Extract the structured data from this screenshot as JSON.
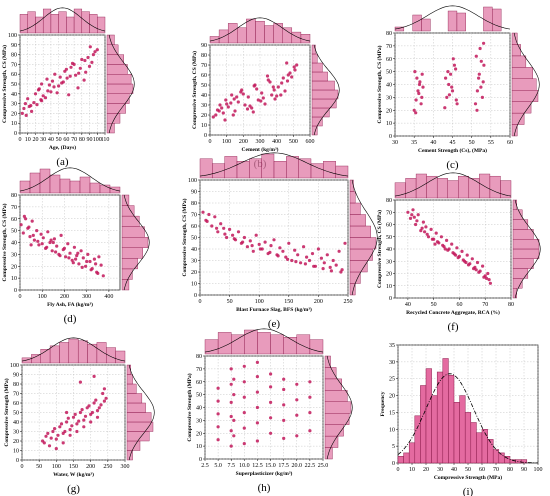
{
  "colors": {
    "point": "#c2185b",
    "bar_fill": "#e07aa6",
    "bar_stroke": "#8b1a4b",
    "hist_fill": "#e46aa0",
    "grid": "#b8b8b8"
  },
  "chart_data": [
    {
      "id": "a",
      "label": "(a)",
      "type": "scatter",
      "xlabel": "Age, (Days)",
      "ylabel": "Compressive Strength, CS (MPa)",
      "xlim": [
        0,
        110
      ],
      "ylim": [
        0,
        100
      ],
      "xticks": [
        0,
        10,
        20,
        30,
        40,
        50,
        60,
        70,
        80,
        90,
        100,
        110
      ],
      "yticks": [
        0,
        10,
        20,
        30,
        40,
        50,
        60,
        70,
        80,
        90,
        100
      ],
      "x": [
        3,
        5,
        7,
        10,
        14,
        20,
        25,
        28,
        28,
        30,
        35,
        40,
        45,
        50,
        56,
        60,
        65,
        70,
        75,
        80,
        85,
        90,
        95,
        100,
        12,
        18,
        24,
        33,
        38,
        42,
        48,
        52,
        58,
        63,
        68,
        72,
        78,
        83,
        88,
        93,
        97,
        15,
        27,
        44,
        61,
        76,
        91,
        8,
        22,
        36,
        54,
        66,
        84
      ],
      "y": [
        20,
        25,
        30,
        35,
        28,
        40,
        45,
        50,
        33,
        38,
        55,
        42,
        60,
        48,
        52,
        65,
        58,
        70,
        46,
        75,
        62,
        68,
        80,
        85,
        27,
        31,
        44,
        36,
        49,
        53,
        41,
        57,
        63,
        39,
        71,
        59,
        66,
        54,
        77,
        72,
        83,
        22,
        34,
        47,
        56,
        61,
        88,
        18,
        29,
        43,
        51,
        67,
        74
      ],
      "top_hist": [
        7,
        8,
        6,
        9,
        7,
        8,
        6,
        9,
        8,
        7,
        6
      ],
      "right_hist": [
        4,
        7,
        10,
        12,
        14,
        13,
        11,
        9,
        6,
        4
      ],
      "top_curve": "bell",
      "right_curve": "bell"
    },
    {
      "id": "b",
      "label": "(b)",
      "type": "scatter",
      "xlabel": "Cement (kg/m³)",
      "ylabel": "Compressive Strength, CS (MPa)",
      "xlim": [
        0,
        600
      ],
      "ylim": [
        0,
        90
      ],
      "xticks": [
        0,
        100,
        200,
        300,
        400,
        500,
        600
      ],
      "yticks": [
        0,
        10,
        20,
        30,
        40,
        50,
        60,
        70,
        80,
        90
      ],
      "x": [
        20,
        45,
        60,
        80,
        95,
        110,
        130,
        150,
        170,
        190,
        210,
        230,
        250,
        270,
        290,
        310,
        330,
        350,
        370,
        390,
        410,
        430,
        450,
        470,
        490,
        510,
        35,
        70,
        125,
        160,
        200,
        240,
        280,
        320,
        360,
        400,
        440,
        480,
        520,
        55,
        100,
        145,
        185,
        225,
        265,
        305,
        345,
        385,
        425,
        465,
        505,
        90,
        140,
        260,
        380,
        460
      ],
      "y": [
        18,
        25,
        30,
        22,
        35,
        28,
        40,
        24,
        33,
        45,
        30,
        38,
        27,
        50,
        35,
        42,
        31,
        55,
        40,
        36,
        48,
        52,
        44,
        60,
        58,
        65,
        20,
        27,
        32,
        38,
        41,
        29,
        46,
        37,
        53,
        39,
        57,
        62,
        70,
        24,
        31,
        36,
        43,
        26,
        49,
        34,
        59,
        45,
        40,
        54,
        68,
        15,
        20,
        23,
        48,
        72
      ],
      "top_hist": [
        3,
        6,
        9,
        7,
        11,
        10,
        8,
        9,
        7,
        5,
        4
      ],
      "right_hist": [
        3,
        6,
        10,
        14,
        15,
        13,
        9,
        6,
        3,
        2
      ],
      "top_curve": "bell",
      "right_curve": "bell"
    },
    {
      "id": "c",
      "label": "(c)",
      "type": "scatter",
      "xlabel": "Cement Strength (Cs), (MPa)",
      "ylabel": "Compressive Strength, CS (MPa)",
      "xlim": [
        30,
        60
      ],
      "ylim": [
        0,
        80
      ],
      "xticks": [
        30,
        35,
        40,
        45,
        50,
        55,
        60
      ],
      "yticks": [
        0,
        10,
        20,
        30,
        40,
        50,
        60,
        70,
        80
      ],
      "x": [
        35,
        35.5,
        36,
        36.5,
        37,
        35.2,
        36.8,
        37.3,
        35.7,
        36.2,
        43,
        43.5,
        44,
        44.5,
        45,
        45.5,
        46,
        43.2,
        44.8,
        45.8,
        51,
        51.5,
        52,
        52.5,
        53,
        51.2,
        52.8,
        53.2,
        51.8,
        52.2,
        35.4,
        36.4,
        44.2,
        45.2,
        51.4,
        52.4,
        37.1,
        46.2,
        53.1,
        43.8
      ],
      "y": [
        20,
        28,
        35,
        42,
        30,
        50,
        25,
        38,
        45,
        33,
        22,
        30,
        40,
        48,
        35,
        55,
        28,
        45,
        38,
        52,
        25,
        35,
        48,
        58,
        42,
        62,
        30,
        55,
        45,
        68,
        18,
        40,
        32,
        60,
        20,
        38,
        48,
        25,
        72,
        50
      ],
      "top_hist": [
        2,
        0,
        8,
        6,
        0,
        0,
        10,
        9,
        0,
        0,
        12,
        11,
        0
      ],
      "right_hist": [
        3,
        7,
        11,
        15,
        14,
        12,
        8,
        5,
        3
      ],
      "top_curve": "bell",
      "right_curve": "bell"
    },
    {
      "id": "d",
      "label": "(d)",
      "type": "scatter",
      "xlabel": "Fly Ash, FA (kg/m³)",
      "ylabel": "Compressive Strength, CS (MPa)",
      "xlim": [
        0,
        450
      ],
      "ylim": [
        0,
        80
      ],
      "xticks": [
        0,
        100,
        200,
        300,
        400
      ],
      "yticks": [
        0,
        10,
        20,
        30,
        40,
        50,
        60,
        70,
        80
      ],
      "x": [
        5,
        15,
        25,
        35,
        45,
        55,
        65,
        75,
        85,
        95,
        105,
        115,
        125,
        135,
        145,
        155,
        165,
        175,
        185,
        195,
        205,
        215,
        225,
        235,
        245,
        255,
        265,
        275,
        285,
        295,
        305,
        315,
        325,
        335,
        345,
        355,
        365,
        375,
        20,
        40,
        60,
        80,
        100,
        120,
        140,
        160,
        180,
        200,
        220,
        240,
        260,
        280,
        300,
        320,
        340,
        50,
        150,
        250,
        350
      ],
      "y": [
        55,
        48,
        60,
        52,
        45,
        58,
        42,
        50,
        38,
        47,
        44,
        35,
        49,
        40,
        33,
        43,
        37,
        30,
        46,
        34,
        28,
        39,
        31,
        25,
        36,
        29,
        22,
        33,
        27,
        20,
        30,
        24,
        18,
        26,
        15,
        28,
        21,
        12,
        62,
        53,
        46,
        41,
        39,
        36,
        42,
        32,
        29,
        35,
        27,
        23,
        31,
        19,
        24,
        17,
        22,
        38,
        40,
        26,
        14
      ],
      "top_hist": [
        6,
        10,
        12,
        9,
        7,
        6,
        8,
        5,
        4,
        3
      ],
      "right_hist": [
        4,
        6,
        9,
        12,
        15,
        13,
        10,
        7,
        4
      ],
      "top_curve": "bell",
      "right_curve": "bell"
    },
    {
      "id": "e",
      "label": "(e)",
      "type": "scatter",
      "xlabel": "Blast Furnace Slag, BFS (kg/m³)",
      "ylabel": "Compressive Strength, CS (MPa)",
      "xlim": [
        0,
        250
      ],
      "ylim": [
        0,
        100
      ],
      "xticks": [
        0,
        50,
        100,
        150,
        200,
        250
      ],
      "yticks": [
        0,
        10,
        20,
        30,
        40,
        50,
        60,
        70,
        80,
        90,
        100
      ],
      "x": [
        5,
        10,
        15,
        20,
        25,
        30,
        35,
        40,
        45,
        50,
        55,
        60,
        65,
        70,
        75,
        80,
        85,
        90,
        95,
        100,
        105,
        110,
        115,
        120,
        125,
        130,
        135,
        140,
        145,
        150,
        155,
        160,
        165,
        170,
        175,
        180,
        185,
        190,
        195,
        200,
        205,
        210,
        215,
        220,
        225,
        230,
        235,
        240,
        245,
        12,
        28,
        42,
        58,
        72,
        88,
        102,
        118,
        132,
        148,
        162,
        178,
        192,
        208,
        222,
        238
      ],
      "y": [
        72,
        65,
        70,
        60,
        68,
        55,
        62,
        58,
        50,
        57,
        52,
        48,
        55,
        45,
        50,
        42,
        47,
        38,
        52,
        44,
        40,
        46,
        36,
        43,
        48,
        35,
        41,
        38,
        33,
        45,
        30,
        39,
        35,
        28,
        42,
        33,
        30,
        36,
        25,
        40,
        32,
        28,
        35,
        24,
        30,
        26,
        38,
        22,
        45,
        64,
        58,
        53,
        49,
        46,
        43,
        40,
        37,
        34,
        31,
        29,
        27,
        25,
        23,
        21,
        20
      ],
      "top_hist": [
        8,
        6,
        9,
        7,
        8,
        10,
        7,
        9,
        8,
        6,
        7,
        5
      ],
      "right_hist": [
        3,
        6,
        10,
        13,
        15,
        12,
        9,
        6,
        3,
        2
      ],
      "top_curve": "bell",
      "right_curve": "bell"
    },
    {
      "id": "f",
      "label": "(f)",
      "type": "scatter",
      "xlabel": "Recycled Concrete Aggregate, RCA (%)",
      "ylabel": "Compressive Strength, CS (MPa)",
      "xlim": [
        35,
        80
      ],
      "ylim": [
        0,
        80
      ],
      "xticks": [
        40,
        50,
        60,
        70,
        80
      ],
      "yticks": [
        0,
        10,
        20,
        30,
        40,
        50,
        60,
        70,
        80
      ],
      "x": [
        40,
        41,
        42,
        43,
        44,
        45,
        46,
        47,
        48,
        49,
        50,
        51,
        52,
        53,
        54,
        55,
        56,
        57,
        58,
        59,
        60,
        61,
        62,
        63,
        64,
        65,
        66,
        67,
        68,
        69,
        70,
        71,
        72,
        41.5,
        43.5,
        45.5,
        47.5,
        49.5,
        51.5,
        53.5,
        55.5,
        57.5,
        59.5,
        61.5,
        63.5,
        65.5,
        67.5,
        69.5,
        71.5,
        42.5,
        46.5,
        50.5,
        54.5,
        58.5,
        62.5,
        66.5,
        70.5
      ],
      "y": [
        70,
        65,
        72,
        60,
        68,
        55,
        62,
        58,
        50,
        56,
        48,
        53,
        45,
        50,
        42,
        47,
        40,
        44,
        36,
        41,
        34,
        38,
        30,
        35,
        28,
        32,
        25,
        29,
        22,
        26,
        18,
        20,
        12,
        68,
        63,
        57,
        52,
        48,
        46,
        43,
        39,
        37,
        33,
        31,
        27,
        24,
        21,
        17,
        15,
        66,
        54,
        44,
        40,
        35,
        29,
        23,
        16
      ],
      "top_hist": [
        7,
        9,
        11,
        10,
        9,
        8,
        10,
        9,
        11,
        10,
        8
      ],
      "right_hist": [
        2,
        5,
        8,
        11,
        14,
        14,
        11,
        8,
        5,
        2
      ],
      "top_curve": "bell",
      "right_curve": "bell"
    },
    {
      "id": "g",
      "label": "(g)",
      "type": "scatter",
      "xlabel": "Water, W (kg/m³)",
      "ylabel": "Compressive Strength (MPa)",
      "xlim": [
        0,
        300
      ],
      "ylim": [
        0,
        100
      ],
      "xticks": [
        0,
        50,
        100,
        150,
        200,
        250,
        300
      ],
      "yticks": [
        0,
        10,
        20,
        30,
        40,
        50,
        60,
        70,
        80,
        90,
        100
      ],
      "x": [
        60,
        70,
        80,
        90,
        100,
        110,
        120,
        130,
        140,
        150,
        160,
        170,
        180,
        190,
        200,
        210,
        220,
        230,
        240,
        65,
        75,
        85,
        95,
        105,
        115,
        125,
        135,
        145,
        155,
        165,
        175,
        185,
        195,
        205,
        215,
        225,
        235,
        245,
        100,
        120,
        140,
        160,
        180,
        200,
        220,
        240,
        130,
        170,
        210
      ],
      "y": [
        20,
        25,
        15,
        30,
        22,
        35,
        28,
        40,
        32,
        45,
        38,
        50,
        42,
        55,
        48,
        60,
        52,
        58,
        62,
        18,
        28,
        23,
        33,
        26,
        38,
        30,
        44,
        36,
        48,
        41,
        53,
        46,
        57,
        50,
        63,
        55,
        70,
        65,
        12,
        18,
        26,
        30,
        35,
        40,
        45,
        75,
        50,
        82,
        88
      ],
      "top_hist": [
        3,
        5,
        8,
        10,
        12,
        14,
        13,
        11,
        12,
        9,
        7
      ],
      "right_hist": [
        3,
        7,
        12,
        14,
        13,
        10,
        8,
        5,
        3,
        2
      ],
      "top_curve": "bell",
      "right_curve": "bell"
    },
    {
      "id": "h",
      "label": "(h)",
      "type": "scatter",
      "xlabel": "Superplasticizer (kg/m³)",
      "ylabel": "Compressive Strength (MPa)",
      "xlim": [
        2.5,
        25
      ],
      "ylim": [
        0,
        80
      ],
      "xticks": [
        2.5,
        5,
        7.5,
        10,
        12.5,
        15,
        17.5,
        20,
        22.5,
        25
      ],
      "yticks": [
        0,
        10,
        20,
        30,
        40,
        50,
        60,
        70,
        80
      ],
      "x": [
        5,
        5,
        5,
        5,
        5,
        7.5,
        7.5,
        7.5,
        7.5,
        7.5,
        7.5,
        8,
        8,
        8,
        8,
        10,
        10,
        10,
        10,
        10,
        10,
        12.5,
        12.5,
        12.5,
        12.5,
        12.5,
        12.5,
        15,
        15,
        15,
        15,
        15,
        17.5,
        17.5,
        17.5,
        17.5,
        17.5,
        20,
        20,
        20,
        20,
        22.5,
        22.5,
        22.5,
        22.5
      ],
      "y": [
        15,
        25,
        35,
        45,
        55,
        10,
        22,
        33,
        44,
        58,
        70,
        18,
        30,
        50,
        62,
        12,
        24,
        36,
        48,
        60,
        72,
        14,
        28,
        40,
        52,
        64,
        75,
        20,
        32,
        44,
        56,
        66,
        16,
        30,
        42,
        54,
        62,
        18,
        34,
        46,
        58,
        22,
        36,
        48,
        60
      ],
      "top_hist": [
        6,
        9,
        8,
        10,
        9,
        8,
        7,
        8,
        6
      ],
      "right_hist": [
        4,
        7,
        10,
        13,
        14,
        12,
        9,
        6,
        3
      ],
      "top_curve": "bell",
      "right_curve": "bell"
    },
    {
      "id": "i",
      "label": "(i)",
      "type": "bar",
      "xlabel": "Compressive Strength (MPa)",
      "ylabel": "Frequency",
      "xlim": [
        0,
        100
      ],
      "ylim": [
        0,
        35
      ],
      "xticks": [
        0,
        10,
        20,
        30,
        40,
        50,
        60,
        70,
        80,
        90,
        100
      ],
      "yticks": [
        0,
        5,
        10,
        15,
        20,
        25,
        30,
        35
      ],
      "bin_width": 4,
      "bins": [
        2,
        6,
        10,
        14,
        18,
        22,
        26,
        30,
        34,
        38,
        42,
        46,
        50,
        54,
        58,
        62,
        66,
        70,
        74,
        78,
        82,
        86,
        90
      ],
      "values": [
        2,
        3,
        6,
        14,
        23,
        28,
        20,
        27,
        31,
        26,
        18,
        20,
        15,
        12,
        9,
        10,
        7,
        4,
        3,
        2,
        1,
        1,
        1
      ],
      "curve": "dash-dot normal fit"
    }
  ]
}
